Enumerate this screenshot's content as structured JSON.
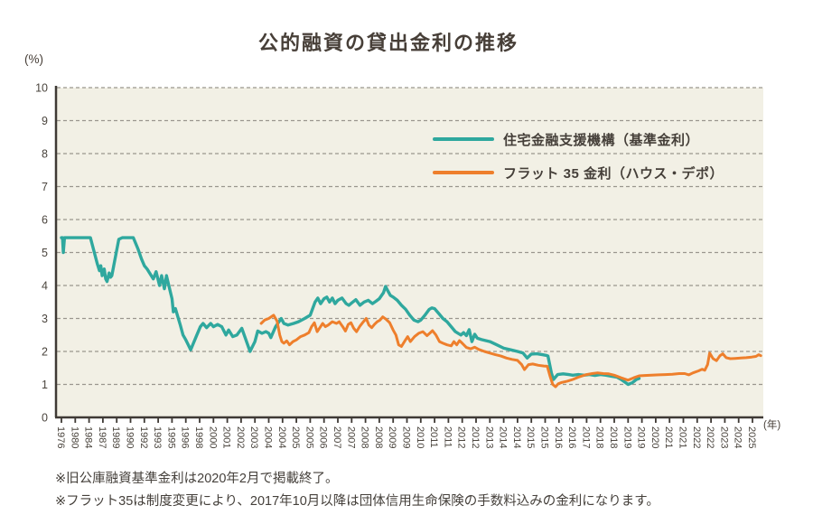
{
  "page": {
    "title": "公的融資の貸出金利の推移"
  },
  "axis": {
    "y_unit": "(%)",
    "x_unit": "(年)"
  },
  "notes": {
    "line1": "※旧公庫融資基準金利は2020年2月で掲載終了。",
    "line2": "※フラット35は制度変更により、2017年10月以降は団体信用生命保険の手数料込みの金利になります。"
  },
  "colors": {
    "page_bg": "#FFFFFF",
    "plot_bg": "#F2F0E5",
    "grid": "#9A968E",
    "axis": "#3F3A35",
    "text": "#4A443D",
    "teal": "#2FA89E",
    "orange": "#EE7F2C"
  },
  "chart_data": {
    "type": "line",
    "title": "公的融資の貸出金利の推移",
    "xlabel": "(年)",
    "ylabel": "(%)",
    "ylim": [
      0,
      10
    ],
    "y_ticks": [
      0,
      1,
      2,
      3,
      4,
      5,
      6,
      7,
      8,
      9,
      10
    ],
    "grid": "horizontal dashed",
    "legend_position": "inside top-right",
    "x_labels": [
      "1976",
      "1980",
      "1984",
      "1987",
      "1989",
      "1990",
      "1992",
      "1993",
      "1995",
      "1996",
      "1998",
      "2000",
      "2001",
      "2002",
      "2003",
      "2004",
      "2004",
      "2005",
      "2005",
      "2006",
      "2007",
      "2007",
      "2008",
      "2008",
      "2009",
      "2009",
      "2010",
      "2011",
      "2011",
      "2012",
      "2012",
      "2013",
      "2014",
      "2014",
      "2015",
      "2015",
      "2016",
      "2016",
      "2017",
      "2018",
      "2018",
      "2019",
      "2019",
      "2020",
      "2021",
      "2021",
      "2022",
      "2022",
      "2023",
      "2024",
      "2025"
    ],
    "series": [
      {
        "name": "住宅金融支援機構（基準金利）",
        "color": "#2FA89E",
        "values_at_year_ticks": [
          5.45,
          5.45,
          5.45,
          4.55,
          5.3,
          5.45,
          4.6,
          4.15,
          3.6,
          2.35,
          2.7,
          2.75,
          2.5,
          2.65,
          2.2,
          2.55,
          3.0,
          2.85,
          3.1,
          3.6,
          3.55,
          3.45,
          3.5,
          3.6,
          3.65,
          3.25,
          2.95,
          3.3,
          2.9,
          2.55,
          2.36,
          2.3,
          2.1,
          2.0,
          1.92,
          1.88,
          1.3,
          1.28,
          1.3,
          1.28,
          1.25,
          1.0,
          null,
          null,
          null,
          null,
          null,
          null,
          null,
          null,
          null
        ],
        "points": [
          [
            0,
            5.45
          ],
          [
            0.08,
            5.45
          ],
          [
            0.14,
            5.0
          ],
          [
            0.22,
            5.45
          ],
          [
            2.1,
            5.45
          ],
          [
            2.6,
            4.65
          ],
          [
            2.75,
            4.45
          ],
          [
            2.85,
            4.6
          ],
          [
            2.95,
            4.3
          ],
          [
            3.1,
            4.5
          ],
          [
            3.2,
            4.2
          ],
          [
            3.3,
            4.12
          ],
          [
            3.45,
            4.38
          ],
          [
            3.55,
            4.25
          ],
          [
            3.65,
            4.3
          ],
          [
            4.15,
            5.4
          ],
          [
            4.4,
            5.45
          ],
          [
            5.2,
            5.45
          ],
          [
            5.55,
            5.1
          ],
          [
            5.8,
            4.8
          ],
          [
            6.0,
            4.6
          ],
          [
            6.2,
            4.5
          ],
          [
            6.65,
            4.2
          ],
          [
            6.85,
            4.42
          ],
          [
            7.1,
            4.0
          ],
          [
            7.25,
            4.3
          ],
          [
            7.45,
            3.9
          ],
          [
            7.6,
            4.3
          ],
          [
            7.8,
            3.95
          ],
          [
            8.0,
            3.6
          ],
          [
            8.1,
            3.2
          ],
          [
            8.25,
            3.3
          ],
          [
            8.6,
            2.8
          ],
          [
            8.8,
            2.5
          ],
          [
            9.0,
            2.35
          ],
          [
            9.35,
            2.05
          ],
          [
            9.8,
            2.5
          ],
          [
            10.05,
            2.75
          ],
          [
            10.25,
            2.85
          ],
          [
            10.5,
            2.72
          ],
          [
            10.8,
            2.85
          ],
          [
            11.0,
            2.75
          ],
          [
            11.3,
            2.82
          ],
          [
            11.6,
            2.75
          ],
          [
            11.9,
            2.5
          ],
          [
            12.1,
            2.65
          ],
          [
            12.4,
            2.45
          ],
          [
            12.7,
            2.5
          ],
          [
            13.05,
            2.7
          ],
          [
            13.65,
            2.0
          ],
          [
            14.0,
            2.3
          ],
          [
            14.2,
            2.62
          ],
          [
            14.5,
            2.55
          ],
          [
            14.8,
            2.6
          ],
          [
            15.0,
            2.55
          ],
          [
            15.15,
            2.42
          ],
          [
            15.5,
            2.75
          ],
          [
            15.9,
            3.0
          ],
          [
            16.1,
            2.85
          ],
          [
            16.4,
            2.8
          ],
          [
            16.8,
            2.85
          ],
          [
            17.15,
            2.9
          ],
          [
            17.6,
            3.0
          ],
          [
            18.0,
            3.1
          ],
          [
            18.35,
            3.5
          ],
          [
            18.55,
            3.62
          ],
          [
            18.75,
            3.45
          ],
          [
            19.0,
            3.6
          ],
          [
            19.2,
            3.65
          ],
          [
            19.4,
            3.5
          ],
          [
            19.6,
            3.62
          ],
          [
            19.8,
            3.45
          ],
          [
            20.0,
            3.55
          ],
          [
            20.3,
            3.62
          ],
          [
            20.6,
            3.45
          ],
          [
            20.8,
            3.4
          ],
          [
            21.0,
            3.47
          ],
          [
            21.3,
            3.57
          ],
          [
            21.6,
            3.4
          ],
          [
            21.9,
            3.5
          ],
          [
            22.2,
            3.55
          ],
          [
            22.5,
            3.45
          ],
          [
            22.75,
            3.52
          ],
          [
            23.0,
            3.6
          ],
          [
            23.3,
            3.78
          ],
          [
            23.45,
            3.97
          ],
          [
            23.6,
            3.85
          ],
          [
            23.8,
            3.7
          ],
          [
            24.0,
            3.65
          ],
          [
            24.3,
            3.55
          ],
          [
            24.6,
            3.4
          ],
          [
            24.9,
            3.28
          ],
          [
            25.2,
            3.1
          ],
          [
            25.5,
            2.95
          ],
          [
            25.8,
            2.9
          ],
          [
            26.0,
            2.95
          ],
          [
            26.3,
            3.1
          ],
          [
            26.6,
            3.27
          ],
          [
            26.8,
            3.32
          ],
          [
            27.0,
            3.3
          ],
          [
            27.3,
            3.15
          ],
          [
            27.6,
            3.0
          ],
          [
            27.9,
            2.9
          ],
          [
            28.2,
            2.75
          ],
          [
            28.5,
            2.6
          ],
          [
            28.7,
            2.55
          ],
          [
            28.9,
            2.5
          ],
          [
            29.1,
            2.57
          ],
          [
            29.3,
            2.48
          ],
          [
            29.5,
            2.66
          ],
          [
            29.7,
            2.3
          ],
          [
            29.9,
            2.52
          ],
          [
            30.1,
            2.4
          ],
          [
            30.4,
            2.36
          ],
          [
            30.7,
            2.33
          ],
          [
            31.0,
            2.3
          ],
          [
            31.5,
            2.2
          ],
          [
            32.0,
            2.1
          ],
          [
            32.5,
            2.05
          ],
          [
            33.0,
            2.0
          ],
          [
            33.4,
            1.95
          ],
          [
            33.7,
            1.8
          ],
          [
            34.0,
            1.92
          ],
          [
            34.4,
            1.93
          ],
          [
            34.8,
            1.9
          ],
          [
            35.1,
            1.88
          ],
          [
            35.2,
            1.86
          ],
          [
            35.45,
            1.35
          ],
          [
            35.6,
            1.15
          ],
          [
            35.9,
            1.3
          ],
          [
            36.3,
            1.32
          ],
          [
            36.7,
            1.3
          ],
          [
            37.0,
            1.28
          ],
          [
            37.4,
            1.3
          ],
          [
            37.8,
            1.28
          ],
          [
            38.2,
            1.3
          ],
          [
            38.6,
            1.27
          ],
          [
            39.0,
            1.3
          ],
          [
            39.4,
            1.28
          ],
          [
            39.8,
            1.25
          ],
          [
            40.2,
            1.22
          ],
          [
            40.5,
            1.15
          ],
          [
            41.0,
            1.0
          ],
          [
            41.3,
            1.05
          ],
          [
            41.6,
            1.15
          ],
          [
            41.8,
            1.18
          ]
        ]
      },
      {
        "name": "フラット 35 金利（ハウス・デポ）",
        "color": "#EE7F2C",
        "values_at_year_ticks": [
          null,
          null,
          null,
          null,
          null,
          null,
          null,
          null,
          null,
          null,
          null,
          null,
          null,
          null,
          null,
          3.0,
          2.3,
          2.35,
          2.6,
          2.85,
          2.9,
          2.7,
          2.95,
          3.0,
          2.6,
          2.35,
          2.5,
          2.55,
          2.2,
          2.25,
          2.06,
          1.95,
          1.8,
          1.73,
          1.58,
          1.55,
          1.04,
          1.1,
          1.15,
          1.33,
          1.33,
          1.13,
          1.26,
          1.29,
          1.31,
          1.33,
          1.41,
          1.75,
          1.8,
          1.8,
          1.85
        ],
        "points": [
          [
            14.45,
            2.85
          ],
          [
            14.7,
            2.95
          ],
          [
            15.0,
            3.0
          ],
          [
            15.35,
            3.1
          ],
          [
            15.6,
            2.92
          ],
          [
            15.8,
            2.5
          ],
          [
            15.95,
            2.3
          ],
          [
            16.1,
            2.25
          ],
          [
            16.3,
            2.32
          ],
          [
            16.5,
            2.2
          ],
          [
            16.75,
            2.3
          ],
          [
            17.0,
            2.35
          ],
          [
            17.3,
            2.45
          ],
          [
            17.6,
            2.5
          ],
          [
            17.9,
            2.57
          ],
          [
            18.1,
            2.75
          ],
          [
            18.3,
            2.87
          ],
          [
            18.5,
            2.6
          ],
          [
            18.7,
            2.72
          ],
          [
            18.9,
            2.85
          ],
          [
            19.1,
            2.75
          ],
          [
            19.3,
            2.8
          ],
          [
            19.6,
            2.9
          ],
          [
            19.9,
            2.85
          ],
          [
            20.1,
            2.9
          ],
          [
            20.35,
            2.75
          ],
          [
            20.55,
            2.62
          ],
          [
            20.75,
            2.82
          ],
          [
            20.95,
            2.87
          ],
          [
            21.15,
            2.7
          ],
          [
            21.35,
            2.6
          ],
          [
            21.6,
            2.77
          ],
          [
            21.85,
            2.9
          ],
          [
            22.05,
            3.0
          ],
          [
            22.25,
            2.8
          ],
          [
            22.45,
            2.72
          ],
          [
            22.65,
            2.82
          ],
          [
            22.85,
            2.9
          ],
          [
            23.05,
            2.95
          ],
          [
            23.25,
            3.05
          ],
          [
            23.5,
            2.97
          ],
          [
            23.75,
            2.87
          ],
          [
            24.0,
            2.65
          ],
          [
            24.2,
            2.5
          ],
          [
            24.4,
            2.2
          ],
          [
            24.6,
            2.15
          ],
          [
            24.85,
            2.32
          ],
          [
            25.05,
            2.45
          ],
          [
            25.25,
            2.3
          ],
          [
            25.55,
            2.45
          ],
          [
            25.85,
            2.55
          ],
          [
            26.15,
            2.6
          ],
          [
            26.45,
            2.48
          ],
          [
            26.65,
            2.55
          ],
          [
            26.85,
            2.63
          ],
          [
            27.1,
            2.5
          ],
          [
            27.35,
            2.3
          ],
          [
            27.6,
            2.25
          ],
          [
            27.9,
            2.2
          ],
          [
            28.2,
            2.17
          ],
          [
            28.4,
            2.3
          ],
          [
            28.6,
            2.2
          ],
          [
            28.8,
            2.33
          ],
          [
            29.0,
            2.25
          ],
          [
            29.3,
            2.12
          ],
          [
            29.6,
            2.08
          ],
          [
            29.9,
            2.13
          ],
          [
            30.2,
            2.06
          ],
          [
            30.6,
            2.0
          ],
          [
            31.0,
            1.95
          ],
          [
            31.4,
            1.9
          ],
          [
            31.8,
            1.86
          ],
          [
            32.2,
            1.8
          ],
          [
            32.6,
            1.76
          ],
          [
            33.0,
            1.73
          ],
          [
            33.3,
            1.6
          ],
          [
            33.5,
            1.45
          ],
          [
            33.8,
            1.6
          ],
          [
            34.1,
            1.62
          ],
          [
            34.5,
            1.58
          ],
          [
            34.9,
            1.56
          ],
          [
            35.15,
            1.55
          ],
          [
            35.35,
            1.25
          ],
          [
            35.55,
            1.0
          ],
          [
            35.75,
            0.93
          ],
          [
            35.95,
            1.02
          ],
          [
            36.2,
            1.06
          ],
          [
            36.6,
            1.1
          ],
          [
            37.0,
            1.15
          ],
          [
            37.4,
            1.22
          ],
          [
            37.6,
            1.25
          ],
          [
            38.0,
            1.3
          ],
          [
            38.4,
            1.33
          ],
          [
            38.8,
            1.35
          ],
          [
            39.2,
            1.33
          ],
          [
            39.6,
            1.32
          ],
          [
            40.0,
            1.28
          ],
          [
            40.5,
            1.2
          ],
          [
            41.0,
            1.13
          ],
          [
            41.4,
            1.2
          ],
          [
            41.8,
            1.26
          ],
          [
            42.2,
            1.27
          ],
          [
            42.7,
            1.28
          ],
          [
            43.2,
            1.29
          ],
          [
            43.7,
            1.3
          ],
          [
            44.2,
            1.31
          ],
          [
            44.7,
            1.33
          ],
          [
            45.1,
            1.33
          ],
          [
            45.4,
            1.29
          ],
          [
            45.7,
            1.35
          ],
          [
            46.1,
            1.41
          ],
          [
            46.35,
            1.46
          ],
          [
            46.55,
            1.43
          ],
          [
            46.75,
            1.6
          ],
          [
            46.9,
            1.95
          ],
          [
            47.15,
            1.78
          ],
          [
            47.4,
            1.72
          ],
          [
            47.65,
            1.87
          ],
          [
            47.85,
            1.93
          ],
          [
            48.1,
            1.81
          ],
          [
            48.4,
            1.78
          ],
          [
            48.75,
            1.79
          ],
          [
            49.15,
            1.8
          ],
          [
            49.55,
            1.81
          ],
          [
            49.95,
            1.83
          ],
          [
            50.25,
            1.85
          ],
          [
            50.45,
            1.9
          ],
          [
            50.6,
            1.87
          ]
        ]
      }
    ]
  }
}
